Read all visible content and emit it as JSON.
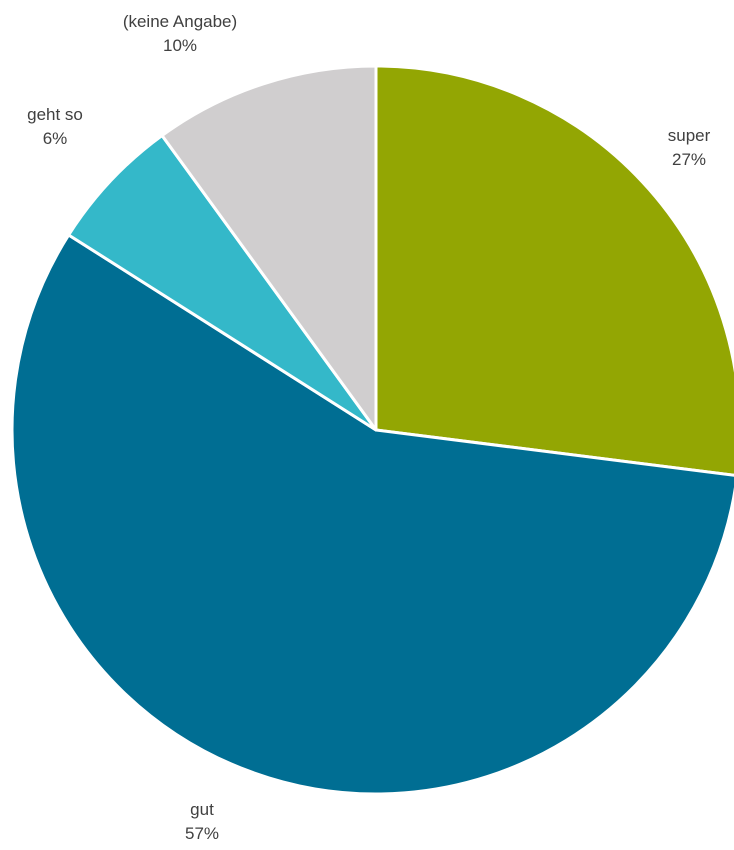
{
  "chart_data": {
    "type": "pie",
    "title": "",
    "categories": [
      "super",
      "gut",
      "geht so",
      "(keine Angabe)"
    ],
    "values": [
      27,
      57,
      6,
      10
    ],
    "value_labels": [
      "27%",
      "57%",
      "6%",
      "10%"
    ],
    "colors": [
      "#93A603",
      "#006E93",
      "#34B8C9",
      "#D0CECF"
    ],
    "start": "12 o'clock",
    "direction": "clockwise",
    "legend": "none, labels outside slices"
  }
}
